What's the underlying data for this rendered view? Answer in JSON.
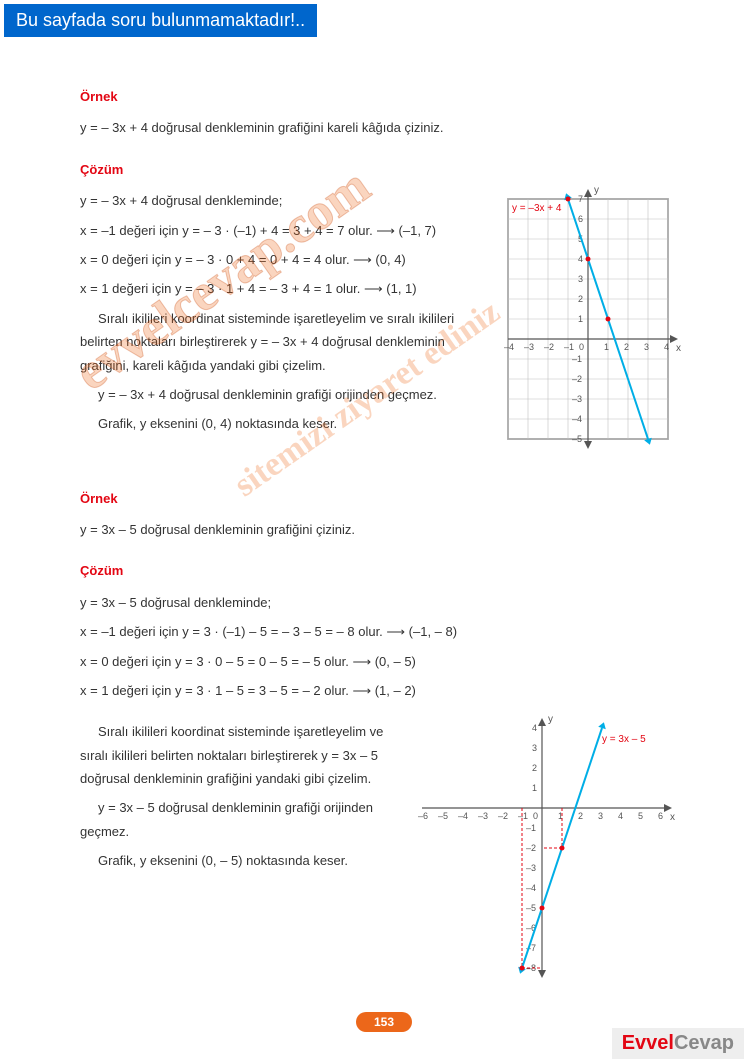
{
  "banner": "Bu sayfada soru bulunmamaktadır!..",
  "example1": {
    "heading": "Örnek",
    "problem": "y = – 3x + 4 doğrusal denkleminin grafiğini kareli kâğıda çiziniz.",
    "solution_heading": "Çözüm",
    "lines": [
      "y = – 3x + 4 doğrusal denkleminde;",
      "x = –1 değeri için y = – 3 · (–1) + 4 = 3 + 4 = 7 olur.  ⟶ (–1, 7)",
      "x = 0 değeri için y = – 3 · 0 + 4 = 0 + 4 = 4 olur.      ⟶ (0, 4)",
      "x = 1 değeri için y = – 3 · 1 + 4 = – 3 + 4 = 1 olur.    ⟶ (1, 1)"
    ],
    "explain": "Sıralı ikilileri koordinat sisteminde işaretleyelim ve sıralı ikilileri belirten noktaları birleştirerek y = – 3x + 4 doğrusal denkleminin grafiğini, kareli kâğıda yandaki gibi çizelim.",
    "note1": "y = – 3x + 4 doğrusal denkleminin grafiği orijinden geçmez.",
    "note2": "Grafik, y eksenini (0, 4) noktasında keser."
  },
  "chart1": {
    "type": "line",
    "label": "y = –3x + 4",
    "label_color": "#e30613",
    "line_color": "#00aee6",
    "points": [
      [
        -1,
        7
      ],
      [
        0,
        4
      ],
      [
        1,
        1
      ],
      [
        3,
        -5
      ]
    ],
    "point_color": "#e30613",
    "xlim": [
      -4,
      4
    ],
    "ylim": [
      -5,
      7
    ],
    "cell": 20,
    "grid_color": "#bfbfbf",
    "border_color": "#808080",
    "axis_color": "#555",
    "tick_fontsize": 9,
    "bg": "#ffffff"
  },
  "example2": {
    "heading": "Örnek",
    "problem": "y = 3x – 5 doğrusal denkleminin grafiğini çiziniz.",
    "solution_heading": "Çözüm",
    "lines": [
      "y = 3x – 5 doğrusal denkleminde;",
      "x = –1 değeri için y = 3 · (–1) – 5 = – 3 – 5 = – 8 olur.  ⟶   (–1, – 8)",
      "x = 0 değeri için y = 3 · 0 – 5 = 0 – 5 = – 5 olur.          ⟶   (0, – 5)",
      "x = 1 değeri için y = 3 · 1 – 5 = 3 – 5 = – 2 olur.          ⟶   (1, – 2)"
    ],
    "explain": "Sıralı ikilileri koordinat sisteminde işaretleyelim ve sıralı ikilileri belirten noktaları birleştirerek y = 3x – 5 doğrusal denkleminin grafiğini yandaki gibi çizelim.",
    "note1": "y = 3x – 5 doğrusal denkleminin grafiği orijinden geçmez.",
    "note2": "Grafik, y eksenini (0, – 5) noktasında keser."
  },
  "chart2": {
    "type": "line",
    "label": "y = 3x – 5",
    "label_color": "#e30613",
    "line_color": "#00aee6",
    "points": [
      [
        -1,
        -8
      ],
      [
        0,
        -5
      ],
      [
        1,
        -2
      ],
      [
        3,
        4
      ]
    ],
    "point_color": "#e30613",
    "dashed_refs": [
      {
        "from": [
          1,
          0
        ],
        "to": [
          1,
          -2
        ],
        "to2": [
          0,
          -2
        ]
      },
      {
        "from": [
          -1,
          0
        ],
        "to": [
          -1,
          -8
        ],
        "to2": [
          0,
          -8
        ]
      }
    ],
    "dash_color": "#e30613",
    "xlim": [
      -6,
      6
    ],
    "ylim": [
      -8,
      4
    ],
    "cell": 20,
    "axis_color": "#555",
    "tick_fontsize": 9,
    "bg": "#ffffff"
  },
  "pagenum": "153",
  "brand": {
    "t1": "Evvel",
    "t2": "Cevap"
  },
  "watermark1": "evvelcevap.com",
  "watermark2": "sitemizi ziyaret   ediniz"
}
